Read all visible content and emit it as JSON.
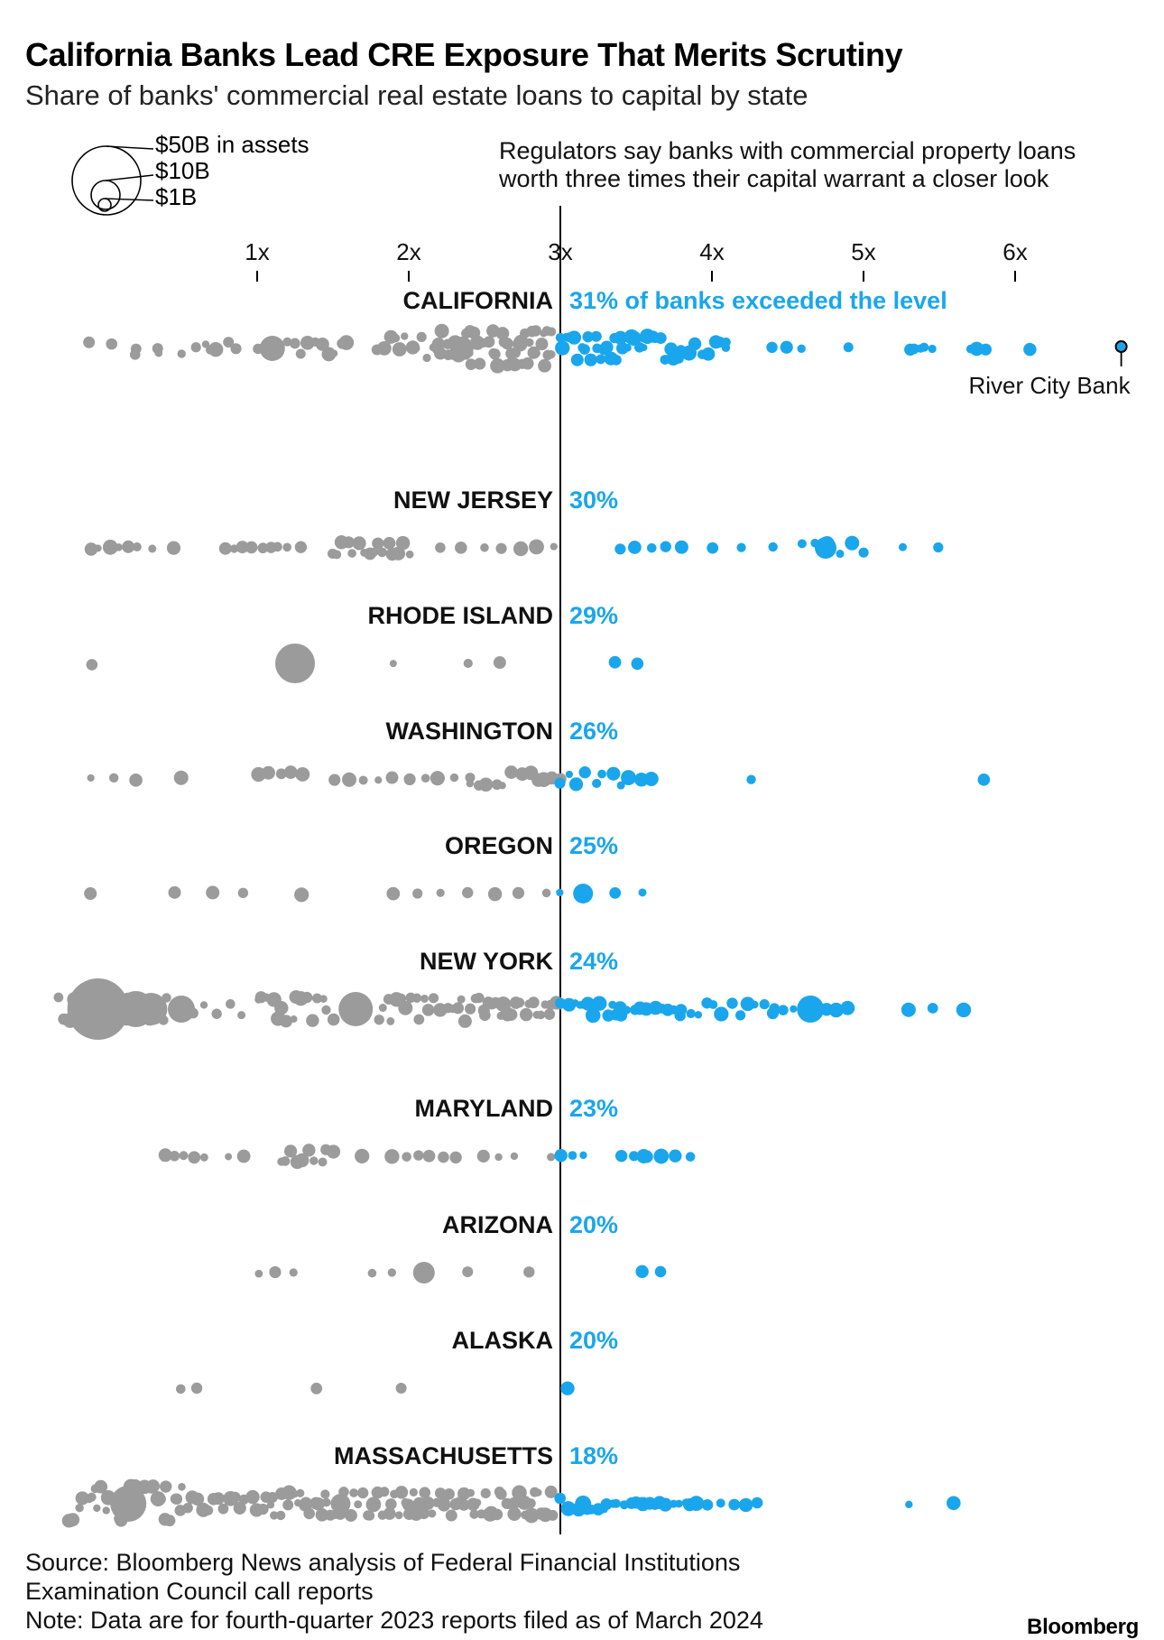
{
  "title": "California Banks Lead CRE Exposure That Merits Scrutiny",
  "subtitle": "Share of banks' commercial real estate loans to capital by state",
  "size_legend": [
    {
      "label": "$50B in assets",
      "assets_b": 50
    },
    {
      "label": "$10B",
      "assets_b": 10
    },
    {
      "label": "$1B",
      "assets_b": 1
    }
  ],
  "threshold_note": [
    "Regulators say banks with commercial property loans",
    "worth three times their capital warrant a closer look"
  ],
  "callout_label": "River City Bank",
  "colors": {
    "below": "#9b9b9b",
    "above": "#1aa6ec",
    "label_above": "#1aa6ec",
    "axis": "#000000"
  },
  "footer": {
    "source_1": "Source: Bloomberg News analysis of Federal Financial Institutions",
    "source_2": "Examination Council call reports",
    "note": "Note: Data are for fourth-quarter 2023 reports filed as of March 2024",
    "brand": "Bloomberg"
  },
  "chart_data": {
    "type": "beeswarm",
    "x_axis": {
      "ticks": [
        "1x",
        "2x",
        "3x",
        "4x",
        "5x",
        "6x"
      ],
      "tick_values": [
        1,
        2,
        3,
        4,
        5,
        6
      ],
      "range": [
        -0.1,
        6.75
      ],
      "threshold": 3
    },
    "callout": {
      "label": "River City Bank",
      "state": "CALIFORNIA",
      "x": 6.7
    },
    "states": [
      {
        "name": "CALIFORNIA",
        "pct_label": "31% of banks exceeded the level",
        "big": [
          [
            1.1,
            14
          ],
          [
            2.35,
            13
          ]
        ],
        "below": [
          [
            -0.1,
            0.8,
            7,
            2
          ],
          [
            0.2,
            0.7,
            2,
            1
          ],
          [
            0.35,
            0.75,
            2,
            1
          ],
          [
            0.6,
            1.0,
            4,
            1
          ],
          [
            1.2,
            1.6,
            10,
            2
          ],
          [
            1.8,
            2.2,
            12,
            3
          ],
          [
            2.2,
            2.95,
            55,
            4
          ]
        ],
        "above": [
          [
            3.0,
            3.3,
            14,
            3
          ],
          [
            3.3,
            3.8,
            22,
            3
          ],
          [
            3.8,
            4.1,
            8,
            2
          ],
          [
            4.1,
            4.3,
            1,
            1
          ],
          [
            4.4,
            4.6,
            3,
            1
          ],
          [
            4.9,
            4.95,
            1,
            1
          ],
          [
            5.3,
            5.4,
            4,
            1
          ],
          [
            5.45,
            5.5,
            1,
            1
          ],
          [
            5.7,
            5.8,
            3,
            1
          ],
          [
            6.1,
            6.12,
            1,
            1
          ]
        ]
      },
      {
        "name": "NEW JERSEY",
        "pct_label": "30%",
        "big": [
          [
            4.75,
            12
          ]
        ],
        "below": [
          [
            -0.1,
            0.2,
            6,
            1
          ],
          [
            0.3,
            0.45,
            2,
            1
          ],
          [
            0.8,
            1.2,
            8,
            1
          ],
          [
            1.3,
            1.4,
            1,
            1
          ],
          [
            1.5,
            2.0,
            16,
            2
          ],
          [
            2.2,
            2.5,
            3,
            1
          ],
          [
            2.6,
            2.7,
            1,
            1
          ],
          [
            2.75,
            2.95,
            3,
            1
          ]
        ],
        "above": [
          [
            3.4,
            3.8,
            5,
            1
          ],
          [
            4.0,
            4.4,
            3,
            1
          ],
          [
            4.6,
            5.0,
            6,
            2
          ],
          [
            5.25,
            5.5,
            2,
            1
          ]
        ]
      },
      {
        "name": "RHODE ISLAND",
        "pct_label": "29%",
        "big": [
          [
            1.25,
            22
          ]
        ],
        "below": [
          [
            -0.1,
            -0.1,
            1,
            1
          ],
          [
            1.9,
            1.9,
            1,
            1
          ],
          [
            2.4,
            2.6,
            2,
            1
          ]
        ],
        "above": [
          [
            3.35,
            3.5,
            2,
            1
          ]
        ]
      },
      {
        "name": "WASHINGTON",
        "pct_label": "26%",
        "big": [
          [
            3.6,
            8
          ]
        ],
        "below": [
          [
            -0.1,
            0.2,
            3,
            1
          ],
          [
            0.5,
            0.5,
            1,
            1
          ],
          [
            1.0,
            1.3,
            5,
            2
          ],
          [
            1.5,
            1.9,
            5,
            1
          ],
          [
            2.0,
            2.4,
            5,
            1
          ],
          [
            2.4,
            2.8,
            8,
            2
          ],
          [
            2.85,
            3.0,
            4,
            1
          ]
        ],
        "above": [
          [
            3.0,
            3.4,
            8,
            2
          ],
          [
            3.45,
            3.6,
            3,
            1
          ],
          [
            4.25,
            4.25,
            1,
            1
          ],
          [
            5.8,
            5.85,
            1,
            1
          ]
        ]
      },
      {
        "name": "OREGON",
        "pct_label": "25%",
        "big": [
          [
            3.15,
            11
          ],
          [
            -0.1,
            7
          ]
        ],
        "below": [
          [
            0.45,
            0.7,
            2,
            1
          ],
          [
            0.9,
            1.3,
            2,
            1
          ],
          [
            1.9,
            2.2,
            3,
            1
          ],
          [
            2.4,
            2.9,
            4,
            1
          ]
        ],
        "above": [
          [
            3.0,
            3.0,
            1,
            1
          ],
          [
            3.35,
            3.55,
            2,
            1
          ]
        ]
      },
      {
        "name": "NEW YORK",
        "pct_label": "24%",
        "big": [
          [
            -0.05,
            34
          ],
          [
            0.2,
            20
          ],
          [
            0.3,
            18
          ],
          [
            0.5,
            15
          ],
          [
            1.65,
            19
          ],
          [
            4.65,
            15
          ]
        ],
        "below": [
          [
            -0.3,
            0.4,
            30,
            3
          ],
          [
            0.5,
            0.9,
            6,
            2
          ],
          [
            1.0,
            1.5,
            16,
            3
          ],
          [
            1.8,
            2.5,
            24,
            3
          ],
          [
            2.5,
            3.0,
            20,
            2
          ]
        ],
        "above": [
          [
            3.0,
            3.4,
            14,
            2
          ],
          [
            3.4,
            3.8,
            10,
            1
          ],
          [
            3.8,
            4.4,
            12,
            2
          ],
          [
            4.4,
            4.9,
            8,
            1
          ],
          [
            5.3,
            5.45,
            2,
            1
          ],
          [
            5.65,
            5.7,
            1,
            1
          ]
        ]
      },
      {
        "name": "MARYLAND",
        "pct_label": "23%",
        "big": [
          [
            3.55,
            8
          ]
        ],
        "below": [
          [
            0.4,
            0.65,
            5,
            1
          ],
          [
            0.8,
            0.9,
            2,
            1
          ],
          [
            1.15,
            1.5,
            10,
            2
          ],
          [
            1.7,
            1.7,
            1,
            1
          ],
          [
            1.9,
            2.3,
            6,
            1
          ],
          [
            2.3,
            2.5,
            2,
            1
          ],
          [
            2.6,
            2.7,
            2,
            1
          ],
          [
            2.95,
            2.95,
            1,
            1
          ]
        ],
        "above": [
          [
            3.0,
            3.15,
            3,
            1
          ],
          [
            3.4,
            3.85,
            6,
            1
          ]
        ]
      },
      {
        "name": "ARIZONA",
        "pct_label": "20%",
        "big": [
          [
            2.1,
            12
          ]
        ],
        "below": [
          [
            1.0,
            1.25,
            3,
            1
          ],
          [
            1.75,
            1.9,
            2,
            1
          ],
          [
            2.4,
            2.4,
            1,
            1
          ],
          [
            2.8,
            2.8,
            1,
            1
          ]
        ],
        "above": [
          [
            3.55,
            3.65,
            2,
            1
          ]
        ]
      },
      {
        "name": "ALASKA",
        "pct_label": "20%",
        "big": [
          [
            1.95,
            6
          ]
        ],
        "below": [
          [
            0.5,
            0.6,
            2,
            1
          ],
          [
            1.4,
            1.4,
            1,
            1
          ]
        ],
        "above": [
          [
            3.05,
            3.05,
            1,
            1
          ]
        ]
      },
      {
        "name": "MASSACHUSETTS",
        "pct_label": "18%",
        "big": [
          [
            0.15,
            20
          ],
          [
            1.55,
            11
          ],
          [
            3.15,
            9
          ]
        ],
        "below": [
          [
            -0.25,
            0.5,
            34,
            4
          ],
          [
            0.5,
            1.1,
            18,
            2
          ],
          [
            1.1,
            2.0,
            40,
            3
          ],
          [
            2.0,
            2.95,
            44,
            3
          ]
        ],
        "above": [
          [
            3.0,
            3.3,
            8,
            2
          ],
          [
            3.3,
            3.9,
            16,
            1
          ],
          [
            3.9,
            4.3,
            6,
            1
          ],
          [
            5.3,
            5.6,
            2,
            1
          ]
        ]
      }
    ]
  }
}
